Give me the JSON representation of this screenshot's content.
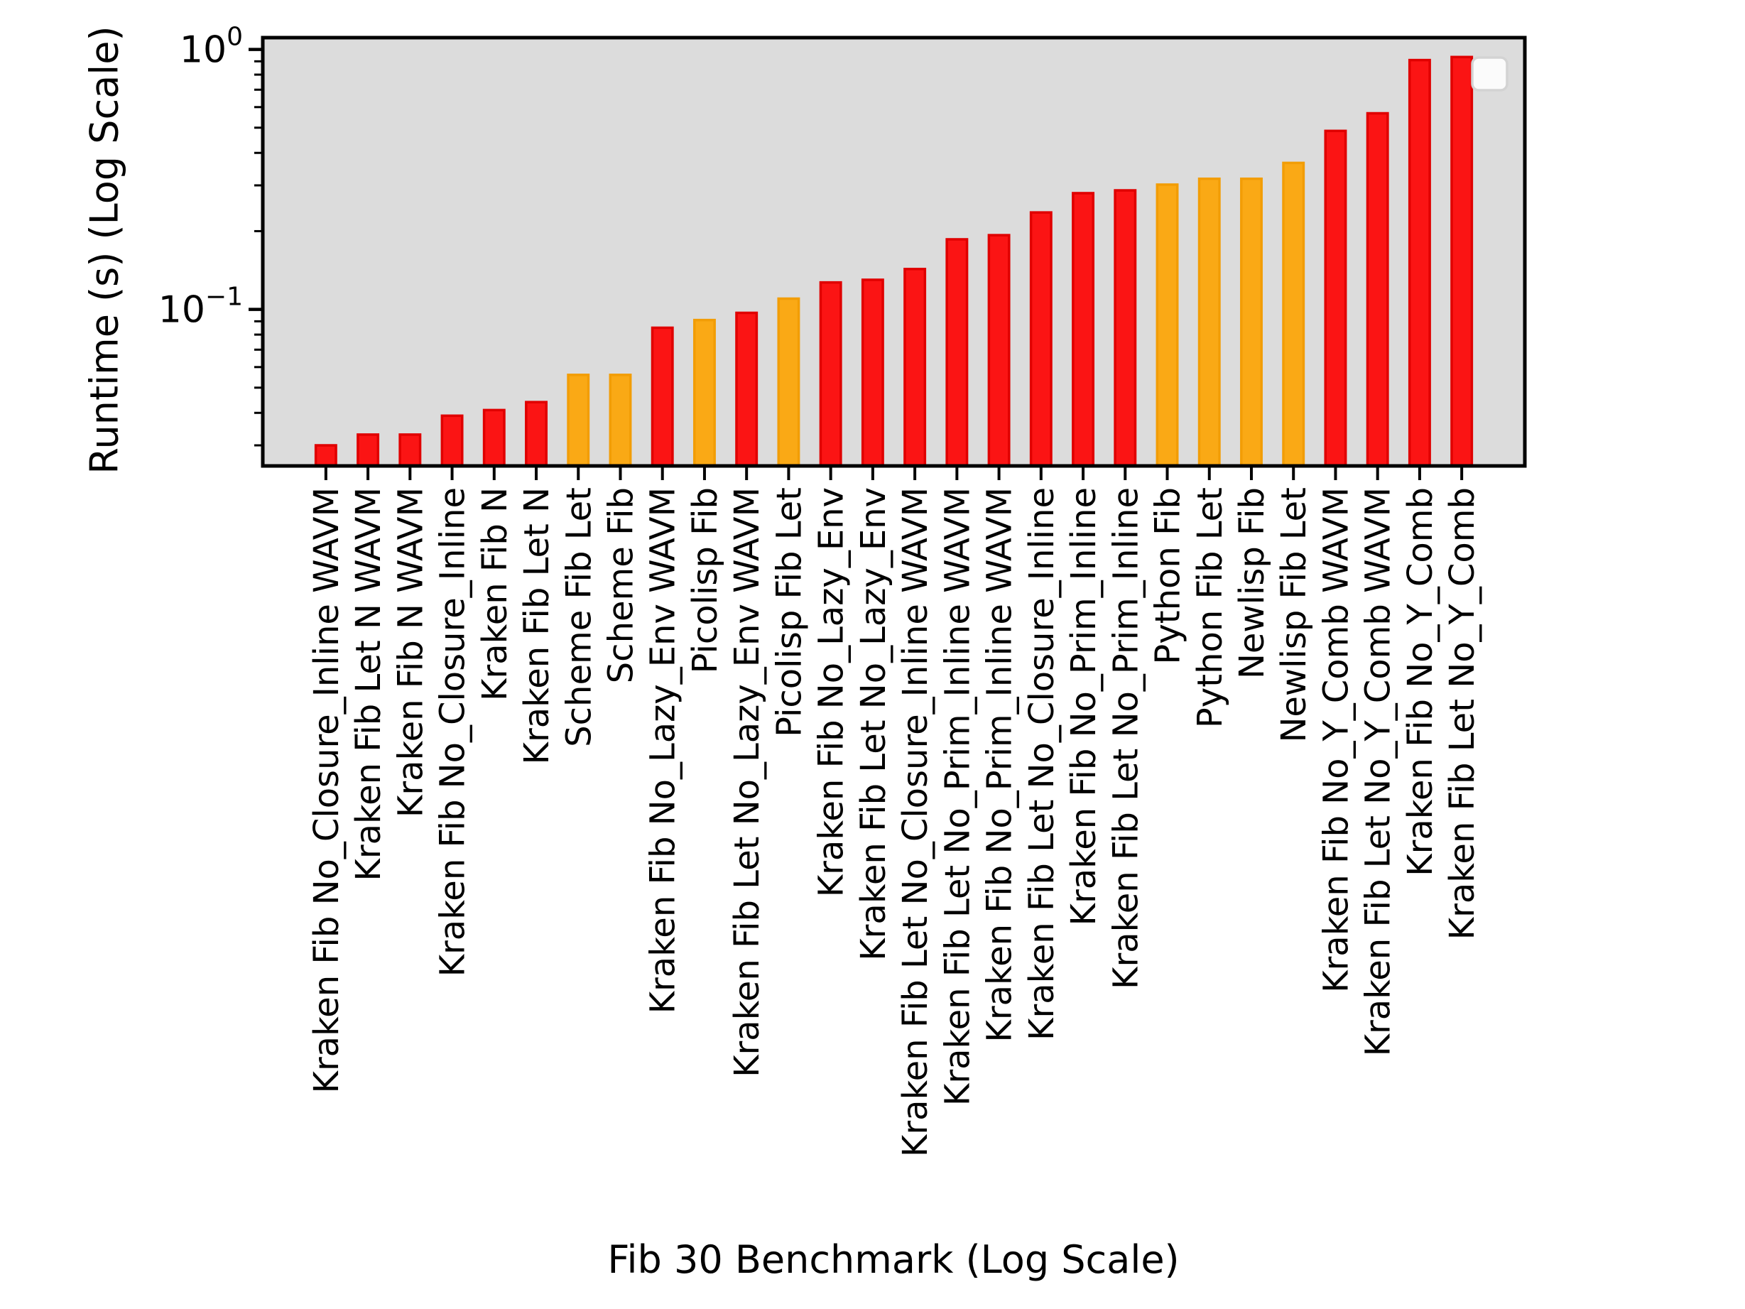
{
  "chart_data": {
    "type": "bar",
    "title": "",
    "xlabel": "Fib 30 Benchmark (Log Scale)",
    "ylabel": "Runtime (s) (Log Scale)",
    "yscale": "log",
    "ylim": [
      0.025,
      1.11
    ],
    "grid": false,
    "plot_background": "#dcdcdc",
    "legend": {
      "visible": true,
      "entries": []
    },
    "y_axis": {
      "major_ticks": [
        {
          "value": 1,
          "base": "10",
          "exp": "0"
        },
        {
          "value": 0.1,
          "base": "10",
          "exp": "−1"
        }
      ]
    },
    "colors": {
      "kraken_red": "#fb1414",
      "kraken_red_edge": "#e00000",
      "other_orange": "#faa915",
      "other_orange_edge": "#f29d06"
    },
    "bars": [
      {
        "label": "Kraken Fib No_Closure_Inline WAVM",
        "value": 0.03,
        "color": "#fb1414",
        "edge": "#e00000"
      },
      {
        "label": "Kraken Fib Let N WAVM",
        "value": 0.033,
        "color": "#fb1414",
        "edge": "#e00000"
      },
      {
        "label": "Kraken Fib N WAVM",
        "value": 0.033,
        "color": "#fb1414",
        "edge": "#e00000"
      },
      {
        "label": "Kraken Fib No_Closure_Inline",
        "value": 0.039,
        "color": "#fb1414",
        "edge": "#e00000"
      },
      {
        "label": "Kraken Fib N",
        "value": 0.041,
        "color": "#fb1414",
        "edge": "#e00000"
      },
      {
        "label": "Kraken Fib Let N",
        "value": 0.044,
        "color": "#fb1414",
        "edge": "#e00000"
      },
      {
        "label": "Scheme Fib Let",
        "value": 0.056,
        "color": "#faa915",
        "edge": "#f29d06"
      },
      {
        "label": "Scheme Fib",
        "value": 0.056,
        "color": "#faa915",
        "edge": "#f29d06"
      },
      {
        "label": "Kraken Fib No_Lazy_Env WAVM",
        "value": 0.085,
        "color": "#fb1414",
        "edge": "#e00000"
      },
      {
        "label": "Picolisp Fib",
        "value": 0.091,
        "color": "#faa915",
        "edge": "#f29d06"
      },
      {
        "label": "Kraken Fib Let No_Lazy_Env WAVM",
        "value": 0.097,
        "color": "#fb1414",
        "edge": "#e00000"
      },
      {
        "label": "Picolisp Fib Let",
        "value": 0.11,
        "color": "#faa915",
        "edge": "#f29d06"
      },
      {
        "label": "Kraken Fib No_Lazy_Env",
        "value": 0.127,
        "color": "#fb1414",
        "edge": "#e00000"
      },
      {
        "label": "Kraken Fib Let No_Lazy_Env",
        "value": 0.13,
        "color": "#fb1414",
        "edge": "#e00000"
      },
      {
        "label": "Kraken Fib Let No_Closure_Inline WAVM",
        "value": 0.143,
        "color": "#fb1414",
        "edge": "#e00000"
      },
      {
        "label": "Kraken Fib Let No_Prim_Inline WAVM",
        "value": 0.186,
        "color": "#fb1414",
        "edge": "#e00000"
      },
      {
        "label": "Kraken Fib No_Prim_Inline WAVM",
        "value": 0.193,
        "color": "#fb1414",
        "edge": "#e00000"
      },
      {
        "label": "Kraken Fib Let No_Closure_Inline",
        "value": 0.236,
        "color": "#fb1414",
        "edge": "#e00000"
      },
      {
        "label": "Kraken Fib No_Prim_Inline",
        "value": 0.28,
        "color": "#fb1414",
        "edge": "#e00000"
      },
      {
        "label": "Kraken Fib Let No_Prim_Inline",
        "value": 0.287,
        "color": "#fb1414",
        "edge": "#e00000"
      },
      {
        "label": "Python Fib",
        "value": 0.302,
        "color": "#faa915",
        "edge": "#f29d06"
      },
      {
        "label": "Python Fib Let",
        "value": 0.318,
        "color": "#faa915",
        "edge": "#f29d06"
      },
      {
        "label": "Newlisp Fib",
        "value": 0.318,
        "color": "#faa915",
        "edge": "#f29d06"
      },
      {
        "label": "Newlisp Fib Let",
        "value": 0.366,
        "color": "#faa915",
        "edge": "#f29d06"
      },
      {
        "label": "Kraken Fib No_Y_Comb WAVM",
        "value": 0.486,
        "color": "#fb1414",
        "edge": "#e00000"
      },
      {
        "label": "Kraken Fib Let No_Y_Comb WAVM",
        "value": 0.568,
        "color": "#fb1414",
        "edge": "#e00000"
      },
      {
        "label": "Kraken Fib No_Y_Comb",
        "value": 0.91,
        "color": "#fb1414",
        "edge": "#e00000"
      },
      {
        "label": "Kraken Fib Let No_Y_Comb",
        "value": 0.935,
        "color": "#fb1414",
        "edge": "#e00000"
      }
    ]
  }
}
